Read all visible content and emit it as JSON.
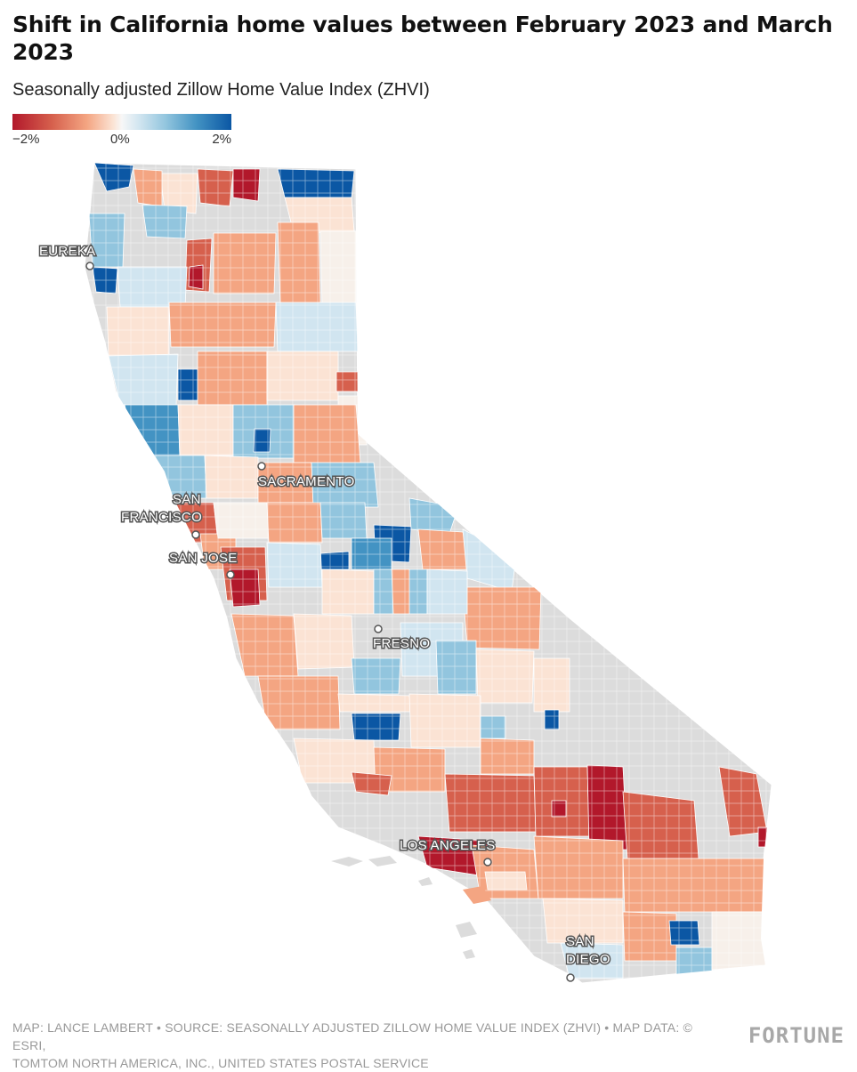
{
  "title": "Shift in California home values between February 2023 and March 2023",
  "subtitle": "Seasonally adjusted Zillow Home Value Index (ZHVI)",
  "legend": {
    "min_label": "−2%",
    "mid_label": "0%",
    "max_label": "2%",
    "colors": [
      "#b2182b",
      "#d6604d",
      "#f4a582",
      "#f7f7f7",
      "#92c5de",
      "#4393c3",
      "#0b57a4"
    ]
  },
  "map": {
    "region": "California",
    "no_data_color": "#dcdcdc",
    "cities": [
      {
        "lines": [
          "EUREKA"
        ]
      },
      {
        "lines": [
          "SACRAMENTO"
        ]
      },
      {
        "lines": [
          "SAN",
          "FRANCISCO"
        ]
      },
      {
        "lines": [
          "SAN JOSE"
        ]
      },
      {
        "lines": [
          "FRESNO"
        ]
      },
      {
        "lines": [
          "LOS ANGELES"
        ]
      },
      {
        "lines": [
          "SAN",
          "DIEGO"
        ]
      }
    ]
  },
  "credits": {
    "line1": "MAP: LANCE LAMBERT • SOURCE: SEASONALLY ADJUSTED ZILLOW HOME VALUE INDEX (ZHVI) • MAP DATA: © ESRI,",
    "line2": "TOMTOM NORTH AMERICA, INC., UNITED STATES POSTAL SERVICE"
  },
  "logo": "FORTUNE"
}
